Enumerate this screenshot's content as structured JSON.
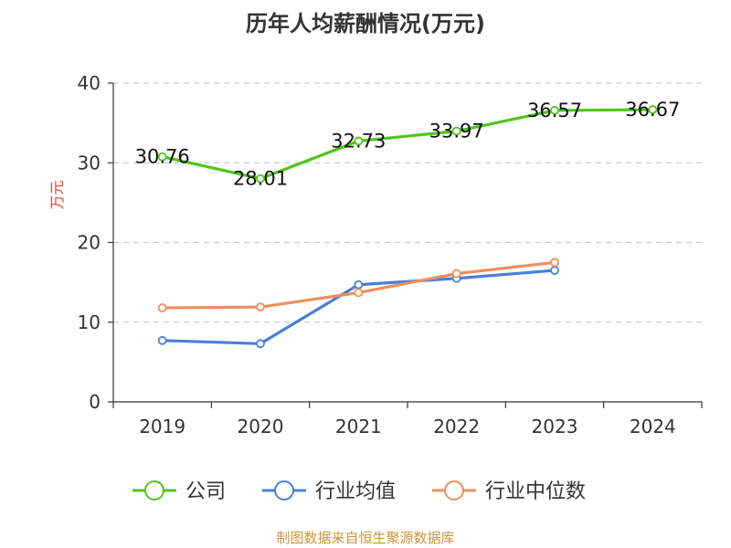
{
  "colors": {
    "company": "#52c41a",
    "industry_avg": "#4a7fd8",
    "industry_median": "#f28e5b",
    "ylabel": "#e8423a",
    "source": "#c8963a",
    "grid": "#cccccc",
    "axis": "#333333"
  },
  "chart_data": {
    "type": "line",
    "title": "历年人均薪酬情况(万元)",
    "ylabel": "万元",
    "xlabel": "",
    "categories": [
      "2019",
      "2020",
      "2021",
      "2022",
      "2023",
      "2024"
    ],
    "ylim": [
      0,
      40
    ],
    "yticks": [
      0,
      10,
      20,
      30,
      40
    ],
    "grid": true,
    "legend_position": "bottom-center",
    "series": [
      {
        "key": "company",
        "name": "公司",
        "values": [
          30.76,
          28.01,
          32.73,
          33.97,
          36.57,
          36.67
        ],
        "labels": [
          "30.76",
          "28.01",
          "32.73",
          "33.97",
          "36.57",
          "36.67"
        ],
        "show_labels": true
      },
      {
        "key": "industry_avg",
        "name": "行业均值",
        "values": [
          7.7,
          7.3,
          14.7,
          15.5,
          16.5,
          null
        ],
        "show_labels": false
      },
      {
        "key": "industry_median",
        "name": "行业中位数",
        "values": [
          11.8,
          11.9,
          13.7,
          16.1,
          17.5,
          null
        ],
        "show_labels": false
      }
    ]
  },
  "source": "制图数据来自恒生聚源数据库"
}
